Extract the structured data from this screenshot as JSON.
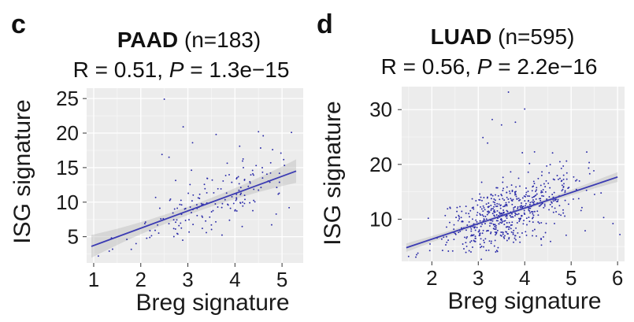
{
  "chart_data": [
    {
      "panel": "c",
      "type": "scatter",
      "title_bold": "PAAD",
      "title_rest": " (n=183)",
      "stat_r": "R = 0.51, ",
      "stat_p_label": "P",
      "stat_p_value": " = 1.3e−15",
      "xlabel": "Breg signature",
      "ylabel": "ISG signature",
      "xlim": [
        0.85,
        5.45
      ],
      "ylim": [
        1.2,
        26.5
      ],
      "xticks": [
        1,
        2,
        3,
        4,
        5
      ],
      "yticks": [
        5,
        10,
        15,
        20,
        25
      ],
      "n": 183,
      "fit": {
        "x": [
          0.95,
          5.3
        ],
        "y": [
          3.6,
          14.5
        ]
      },
      "ci_halfwidth": {
        "ends": 1.7,
        "center": 0.6,
        "center_x": 3.1
      },
      "notable_points": [
        [
          2.5,
          24.9
        ],
        [
          2.9,
          20.9
        ],
        [
          4.5,
          20.2
        ],
        [
          5.2,
          20.1
        ],
        [
          3.6,
          19.8
        ],
        [
          4.6,
          19.6
        ],
        [
          3.1,
          18.6
        ],
        [
          4.1,
          18.1
        ],
        [
          4.8,
          17.6
        ],
        [
          2.45,
          16.9
        ],
        [
          2.6,
          16.5
        ],
        [
          5.15,
          9.2
        ],
        [
          1.1,
          2.2
        ],
        [
          1.4,
          3.2
        ],
        [
          1.9,
          4.0
        ]
      ],
      "cloud": {
        "x_center": 3.6,
        "x_sd": 0.9,
        "x_min": 1.0,
        "x_max": 5.3,
        "resid_sd": 2.3
      }
    },
    {
      "panel": "d",
      "type": "scatter",
      "title_bold": "LUAD",
      "title_rest": " (n=595)",
      "stat_r": "R = 0.56, ",
      "stat_p_label": "P",
      "stat_p_value": " = 2.2e−16",
      "xlabel": "Breg signature",
      "ylabel": "ISG signature",
      "xlim": [
        1.35,
        6.15
      ],
      "ylim": [
        2.3,
        34.2
      ],
      "xticks": [
        2,
        3,
        4,
        5,
        6
      ],
      "yticks": [
        10,
        20,
        30
      ],
      "n": 595,
      "fit": {
        "x": [
          1.45,
          6.0
        ],
        "y": [
          4.8,
          17.7
        ]
      },
      "ci_halfwidth": {
        "ends": 0.9,
        "center": 0.3,
        "center_x": 3.6
      },
      "notable_points": [
        [
          3.65,
          33.2
        ],
        [
          3.3,
          28.2
        ],
        [
          3.5,
          27.2
        ],
        [
          3.8,
          27.7
        ],
        [
          4.0,
          30.1
        ],
        [
          3.1,
          24.9
        ],
        [
          3.2,
          23.9
        ],
        [
          4.6,
          22.1
        ],
        [
          4.9,
          20.6
        ],
        [
          5.4,
          18.3
        ],
        [
          5.7,
          10.3
        ],
        [
          5.9,
          9.2
        ],
        [
          1.5,
          3.2
        ],
        [
          1.7,
          3.8
        ],
        [
          6.05,
          7.2
        ]
      ],
      "cloud": {
        "x_center": 3.6,
        "x_sd": 0.72,
        "x_min": 1.45,
        "x_max": 5.95,
        "resid_sd": 3.0
      }
    }
  ]
}
